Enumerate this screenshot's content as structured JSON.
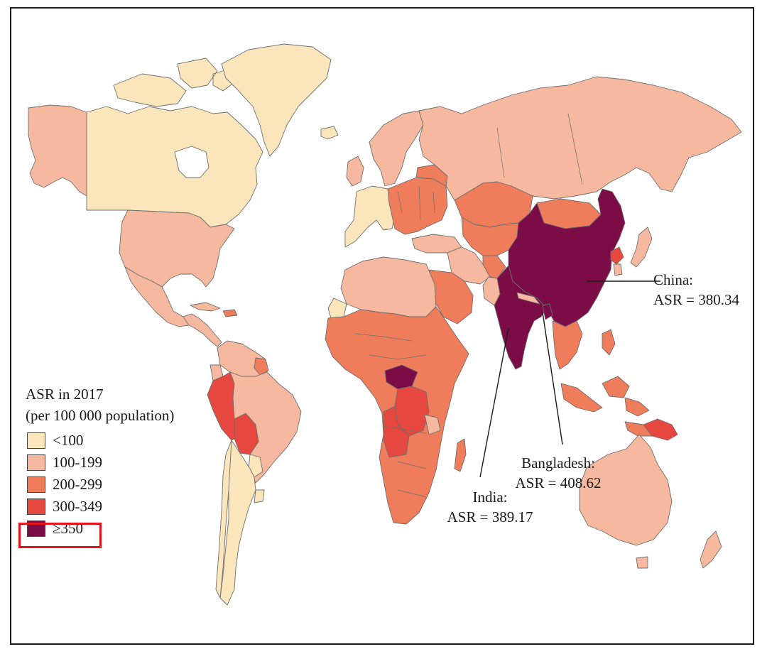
{
  "legend": {
    "title_line1": "ASR in 2017",
    "title_line2": "(per 100 000 population)",
    "items": [
      {
        "label": "<100",
        "color": "#fbe5bb"
      },
      {
        "label": "100-199",
        "color": "#f6b9a0"
      },
      {
        "label": "200-299",
        "color": "#ef7d5c"
      },
      {
        "label": "300-349",
        "color": "#e6483f"
      },
      {
        "label": "≥350",
        "color": "#7b0c45"
      }
    ],
    "highlighted_item": "300-349",
    "highlight_color": "#e8141c"
  },
  "annotations": {
    "china": {
      "line1": "China:",
      "line2": "ASR = 380.34"
    },
    "india": {
      "line1": "India:",
      "line2": "ASR = 389.17"
    },
    "bangladesh": {
      "line1": "Bangladesh:",
      "line2": "ASR = 408.62"
    }
  },
  "categories": {
    "below_100": [
      "Canada",
      "Greenland",
      "Western Europe",
      "Argentina",
      "Uruguay"
    ],
    "100_199": [
      "Alaska",
      "United States",
      "Mexico",
      "Central America",
      "Brazil",
      "Russia",
      "Eastern Europe",
      "North Africa",
      "Middle East",
      "Kazakhstan",
      "Mongolia",
      "Japan",
      "Australia",
      "New Zealand",
      "Southern Africa islands"
    ],
    "200_299": [
      "Central Asia",
      "Sub-Saharan Africa",
      "Southeast Asia",
      "Indonesia",
      "Arabian Peninsula",
      "Eastern Europe (part)",
      "Madagascar"
    ],
    "300_349": [
      "Peru",
      "Bolivia",
      "Angola",
      "DR Congo",
      "Papua New Guinea",
      "North Korea"
    ],
    "350_plus": [
      "China",
      "India",
      "Bangladesh",
      "Central African Republic"
    ]
  }
}
